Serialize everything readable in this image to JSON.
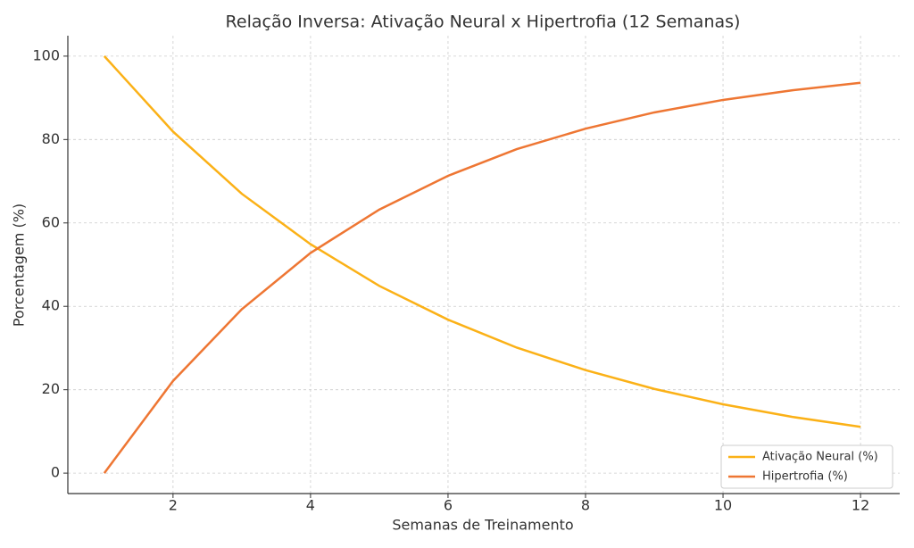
{
  "chart_data": {
    "type": "line",
    "title": "Relação Inversa: Ativação Neural x Hipertrofia (12 Semanas)",
    "x_label": "Semanas de Treinamento",
    "y_label": "Porcentagem (%)",
    "x": [
      1,
      2,
      3,
      4,
      5,
      6,
      7,
      8,
      9,
      10,
      11,
      12
    ],
    "series": [
      {
        "name": "Ativação Neural (%)",
        "color": "#fbb117",
        "values": [
          100,
          81.9,
          67.0,
          54.9,
          44.9,
          36.8,
          30.1,
          24.7,
          20.2,
          16.5,
          13.5,
          11.1
        ]
      },
      {
        "name": "Hipertrofia (%)",
        "color": "#ee7633",
        "values": [
          0,
          22.1,
          39.3,
          52.8,
          63.2,
          71.3,
          77.7,
          82.6,
          86.5,
          89.5,
          91.8,
          93.6
        ]
      }
    ],
    "xlim": [
      0.47,
      12.57
    ],
    "ylim": [
      -4.9,
      104.9
    ],
    "xticks": [
      2,
      4,
      6,
      8,
      10,
      12
    ],
    "yticks": [
      0,
      20,
      40,
      60,
      80,
      100
    ],
    "grid": true,
    "legend": "lower right"
  }
}
